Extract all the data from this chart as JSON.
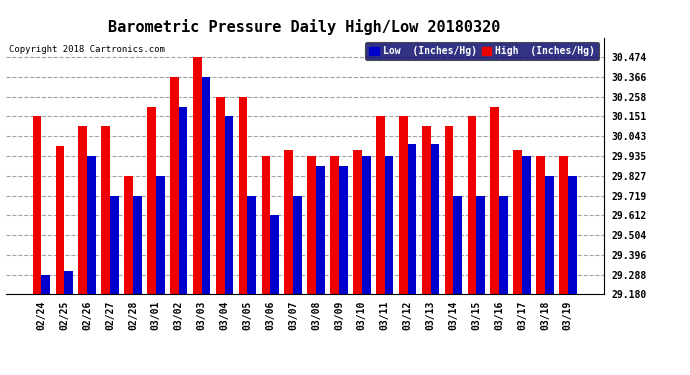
{
  "title": "Barometric Pressure Daily High/Low 20180320",
  "copyright": "Copyright 2018 Cartronics.com",
  "dates": [
    "02/24",
    "02/25",
    "02/26",
    "02/27",
    "02/28",
    "03/01",
    "03/02",
    "03/03",
    "03/04",
    "03/05",
    "03/06",
    "03/07",
    "03/08",
    "03/09",
    "03/10",
    "03/11",
    "03/12",
    "03/13",
    "03/14",
    "03/15",
    "03/16",
    "03/17",
    "03/18",
    "03/19"
  ],
  "high_values": [
    30.151,
    29.988,
    30.097,
    30.097,
    29.827,
    30.204,
    30.366,
    30.474,
    30.258,
    30.258,
    29.935,
    29.97,
    29.935,
    29.935,
    29.97,
    30.151,
    30.151,
    30.097,
    30.097,
    30.151,
    30.204,
    29.97,
    29.935,
    29.935
  ],
  "low_values": [
    29.288,
    29.31,
    29.935,
    29.719,
    29.719,
    29.827,
    30.204,
    30.366,
    30.151,
    29.719,
    29.612,
    29.719,
    29.88,
    29.88,
    29.935,
    29.935,
    30.0,
    30.0,
    29.719,
    29.719,
    29.719,
    29.935,
    29.827,
    29.827
  ],
  "ylim_min": 29.18,
  "ylim_max": 30.582,
  "yticks": [
    29.18,
    29.288,
    29.396,
    29.504,
    29.612,
    29.719,
    29.827,
    29.935,
    30.043,
    30.151,
    30.258,
    30.366,
    30.474
  ],
  "bar_color_low": "#0000cc",
  "bar_color_high": "#ee0000",
  "background_color": "#ffffff",
  "grid_color": "#999999",
  "title_fontsize": 11,
  "legend_label_low": "Low  (Inches/Hg)",
  "legend_label_high": "High  (Inches/Hg)"
}
